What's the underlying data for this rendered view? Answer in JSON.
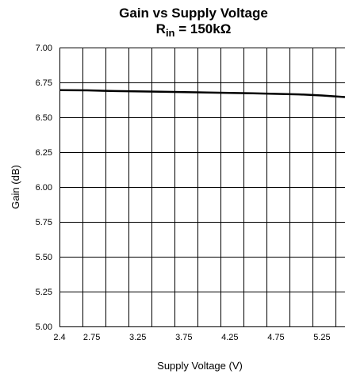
{
  "chart_data": {
    "type": "line",
    "title": "Gain vs Supply Voltage",
    "subtitle": {
      "main": "R",
      "sub": "in",
      "rest": " = 150kΩ"
    },
    "xlabel": "Supply Voltage (V)",
    "ylabel": "Gain (dB)",
    "xlim": [
      2.4,
      5.5
    ],
    "ylim": [
      5.0,
      7.0
    ],
    "x_ticks": [
      "2.4",
      "2.75",
      "3.25",
      "3.75",
      "4.25",
      "4.75",
      "5.25"
    ],
    "y_ticks": [
      "7.00",
      "6.75",
      "6.50",
      "6.25",
      "6.00",
      "5.75",
      "5.50",
      "5.25",
      "5.00"
    ],
    "grid": true,
    "series": [
      {
        "x": [
          2.4,
          2.7,
          3.0,
          3.5,
          4.0,
          4.5,
          5.0,
          5.25,
          5.5
        ],
        "y": [
          6.695,
          6.693,
          6.688,
          6.683,
          6.678,
          6.672,
          6.664,
          6.656,
          6.645
        ],
        "color": "#000000"
      }
    ]
  }
}
